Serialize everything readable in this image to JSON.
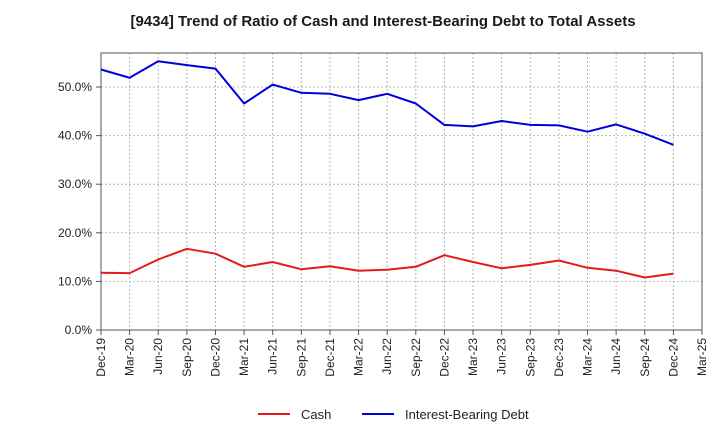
{
  "chart_data": {
    "type": "line",
    "title": "[9434]  Trend of Ratio of Cash and Interest-Bearing Debt to Total Assets",
    "xlabel": "",
    "ylabel": "",
    "ylim": [
      0,
      57
    ],
    "yticks": [
      "0.0%",
      "10.0%",
      "20.0%",
      "30.0%",
      "40.0%",
      "50.0%"
    ],
    "ytick_values": [
      0,
      10,
      20,
      30,
      40,
      50
    ],
    "categories": [
      "Dec-19",
      "Mar-20",
      "Jun-20",
      "Sep-20",
      "Dec-20",
      "Mar-21",
      "Jun-21",
      "Sep-21",
      "Dec-21",
      "Mar-22",
      "Jun-22",
      "Sep-22",
      "Dec-22",
      "Mar-23",
      "Jun-23",
      "Sep-23",
      "Dec-23",
      "Mar-24",
      "Jun-24",
      "Sep-24",
      "Dec-24",
      "Mar-25"
    ],
    "grid": true,
    "legend_position": "bottom",
    "series": [
      {
        "name": "Cash",
        "color": "#e41a1c",
        "values": [
          11.8,
          11.7,
          14.5,
          16.7,
          15.7,
          13.0,
          14.0,
          12.5,
          13.1,
          12.2,
          12.4,
          13.0,
          15.4,
          14.0,
          12.7,
          13.4,
          14.3,
          12.8,
          12.2,
          10.8,
          11.6,
          null
        ]
      },
      {
        "name": "Interest-Bearing Debt",
        "color": "#0000dd",
        "values": [
          53.6,
          51.9,
          55.3,
          54.5,
          53.8,
          46.6,
          50.5,
          48.8,
          48.6,
          47.3,
          48.6,
          46.6,
          42.2,
          41.9,
          43.0,
          42.2,
          42.1,
          40.8,
          42.3,
          40.4,
          38.1,
          null
        ]
      }
    ]
  }
}
